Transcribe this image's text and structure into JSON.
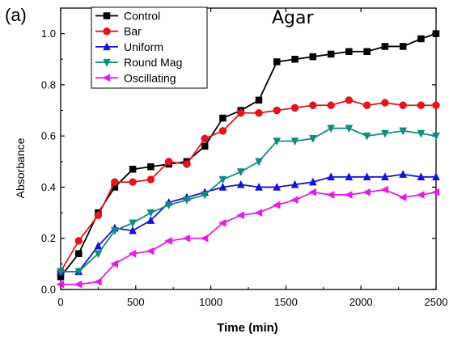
{
  "panel_label": "(a)",
  "chart_data": {
    "type": "line",
    "title": "Agar",
    "xlabel": "Time (min)",
    "ylabel": "Absorbance",
    "xlim": [
      0,
      2500
    ],
    "ylim": [
      0.0,
      1.1
    ],
    "xticks": [
      0,
      500,
      1000,
      1500,
      2000,
      2500
    ],
    "yticks": [
      0.0,
      0.2,
      0.4,
      0.6,
      0.8,
      1.0
    ],
    "xtick_labels": [
      "0",
      "500",
      "1000",
      "1500",
      "2000",
      "2500"
    ],
    "ytick_labels": [
      "0.0",
      "0.2",
      "0.4",
      "0.6",
      "0.8",
      "1.0"
    ],
    "grid": false,
    "legend_position": "top-left",
    "series": [
      {
        "name": "Control",
        "color": "#000000",
        "marker": "square",
        "x": [
          0,
          120,
          250,
          360,
          480,
          600,
          720,
          840,
          960,
          1080,
          1200,
          1320,
          1440,
          1560,
          1680,
          1800,
          1920,
          2040,
          2160,
          2280,
          2400,
          2500
        ],
        "y": [
          0.05,
          0.14,
          0.3,
          0.4,
          0.47,
          0.48,
          0.49,
          0.5,
          0.56,
          0.67,
          0.7,
          0.74,
          0.89,
          0.9,
          0.91,
          0.92,
          0.93,
          0.93,
          0.95,
          0.95,
          0.98,
          1.0
        ]
      },
      {
        "name": "Bar",
        "color": "#e3141b",
        "marker": "circle",
        "x": [
          0,
          120,
          250,
          360,
          480,
          600,
          720,
          840,
          960,
          1080,
          1200,
          1320,
          1440,
          1560,
          1680,
          1800,
          1920,
          2040,
          2160,
          2280,
          2400,
          2500
        ],
        "y": [
          0.07,
          0.19,
          0.29,
          0.42,
          0.42,
          0.43,
          0.5,
          0.49,
          0.59,
          0.62,
          0.69,
          0.69,
          0.7,
          0.71,
          0.72,
          0.72,
          0.74,
          0.72,
          0.73,
          0.72,
          0.72,
          0.72
        ]
      },
      {
        "name": "Uniform",
        "color": "#1414d6",
        "marker": "triangle-up",
        "x": [
          0,
          120,
          250,
          360,
          480,
          600,
          720,
          840,
          960,
          1080,
          1200,
          1320,
          1440,
          1560,
          1680,
          1800,
          1920,
          2040,
          2160,
          2280,
          2400,
          2500
        ],
        "y": [
          0.07,
          0.07,
          0.17,
          0.24,
          0.23,
          0.27,
          0.34,
          0.36,
          0.38,
          0.4,
          0.41,
          0.4,
          0.4,
          0.41,
          0.42,
          0.44,
          0.44,
          0.44,
          0.44,
          0.45,
          0.44,
          0.44
        ]
      },
      {
        "name": "Round Mag",
        "color": "#0e8c80",
        "marker": "triangle-down",
        "x": [
          0,
          120,
          250,
          360,
          480,
          600,
          720,
          840,
          960,
          1080,
          1200,
          1320,
          1440,
          1560,
          1680,
          1800,
          1920,
          2040,
          2160,
          2280,
          2400,
          2500
        ],
        "y": [
          0.07,
          0.07,
          0.14,
          0.23,
          0.26,
          0.3,
          0.33,
          0.35,
          0.37,
          0.43,
          0.46,
          0.5,
          0.58,
          0.58,
          0.59,
          0.63,
          0.63,
          0.6,
          0.61,
          0.62,
          0.61,
          0.6
        ]
      },
      {
        "name": "Oscillating",
        "color": "#e51ee5",
        "marker": "triangle-left",
        "x": [
          0,
          120,
          250,
          360,
          480,
          600,
          720,
          840,
          960,
          1080,
          1200,
          1320,
          1440,
          1560,
          1680,
          1800,
          1920,
          2040,
          2160,
          2280,
          2400,
          2500
        ],
        "y": [
          0.02,
          0.02,
          0.03,
          0.1,
          0.14,
          0.15,
          0.19,
          0.2,
          0.2,
          0.26,
          0.29,
          0.3,
          0.33,
          0.35,
          0.38,
          0.37,
          0.37,
          0.38,
          0.39,
          0.36,
          0.37,
          0.38
        ]
      }
    ]
  }
}
